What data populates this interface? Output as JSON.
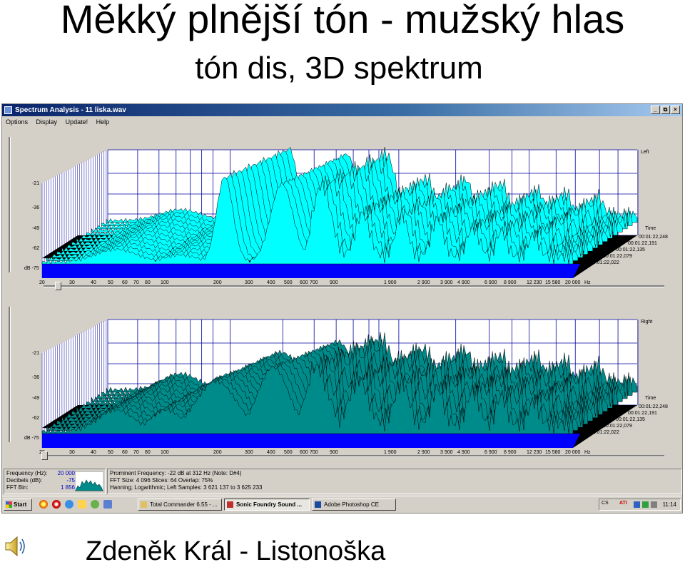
{
  "slide": {
    "title": "Měkký plnější tón - mužský hlas",
    "subtitle": "tón dis, 3D spektrum",
    "footer": "Zdeněk Král - Listonoška"
  },
  "window": {
    "title": "Spectrum Analysis - 11 liska.wav",
    "buttons": [
      "_",
      "⧉",
      "×"
    ],
    "menu": [
      "Options",
      "Display",
      "Update!",
      "Help"
    ]
  },
  "panels": [
    {
      "channel": "Left",
      "y_ticks": [
        "-21",
        "-36",
        "-49",
        "-62",
        "dB -75"
      ],
      "x_ticks": [
        "20",
        "30",
        "40",
        "50",
        "60",
        "70",
        "80",
        "100",
        "200",
        "300",
        "400",
        "500",
        "600",
        "700",
        "900",
        "1 900",
        "2 900",
        "3 900",
        "4 900",
        "6 900",
        "8 900",
        "12 230",
        "15 580",
        "20 000",
        "Hz"
      ],
      "time_label": "Time",
      "times": [
        "00:01:22,248",
        "00:01:22,191",
        "00:01:22,135",
        "00:01:22,079",
        "00:01:22,022"
      ]
    },
    {
      "channel": "Right",
      "y_ticks": [
        "-21",
        "-36",
        "-49",
        "-62",
        "dB -75"
      ],
      "x_ticks": [
        "20",
        "30",
        "40",
        "50",
        "60",
        "70",
        "80",
        "100",
        "200",
        "300",
        "400",
        "500",
        "600",
        "700",
        "900",
        "1 900",
        "2 900",
        "3 900",
        "4 900",
        "6 900",
        "8 900",
        "12 230",
        "15 580",
        "20 000",
        "Hz"
      ],
      "time_label": "Time",
      "times": [
        "00:01:22,248",
        "00:01:22,191",
        "00:01:22,135",
        "00:01:22,079",
        "00:01:22,022"
      ]
    }
  ],
  "status": {
    "left_rows": [
      {
        "label": "Frequency (Hz):",
        "value": "20 000"
      },
      {
        "label": "Decibels (dB):",
        "value": "-75"
      },
      {
        "label": "FFT Bin:",
        "value": "1 856"
      }
    ],
    "info_lines": [
      "Prominent Frequency: -22 dB at 312 Hz (Note: D#4)",
      "FFT Size: 4 096  Slices: 64  Overlap: 75%",
      "Hanning; Logarithmic; Left  Samples: 3 621 137 to 3 625 233"
    ]
  },
  "taskbar": {
    "start": "Start",
    "tasks": [
      "Total Commander 6.55 - ...",
      "Sonic Foundry Sound ...",
      "Adobe Photoshop CE"
    ],
    "clock": "11:14",
    "tray_text": [
      "CS",
      "ATI"
    ]
  },
  "colors": {
    "surface_front": "#00ffff",
    "surface_back": "#008b8b",
    "floor": "#0000ff",
    "grid": "#0000a0",
    "titlebar": "#0a246a"
  }
}
